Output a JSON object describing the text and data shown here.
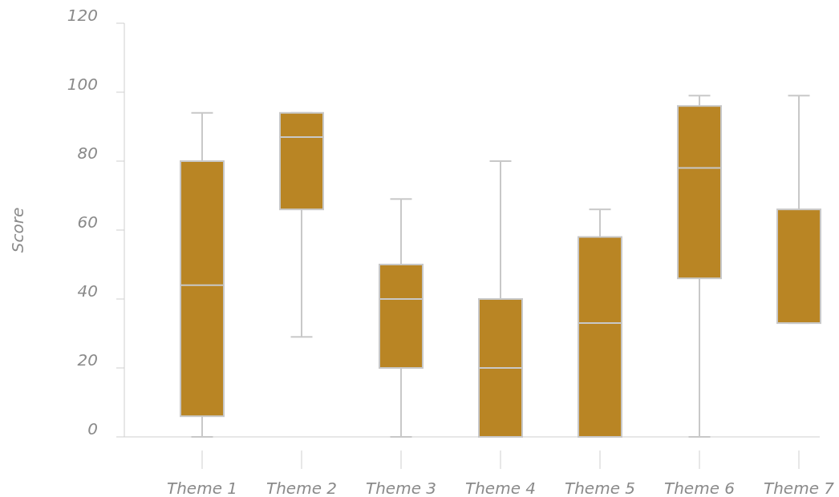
{
  "chart_data": {
    "type": "box",
    "ylabel": "Score",
    "categories": [
      "Theme 1",
      "Theme 2",
      "Theme 3",
      "Theme 4",
      "Theme 5",
      "Theme 6",
      "Theme 7"
    ],
    "boxes": [
      {
        "low": 0,
        "q1": 6,
        "median": 44,
        "q3": 80,
        "high": 94
      },
      {
        "low": 29,
        "q1": 66,
        "median": 87,
        "q3": 94,
        "high": 94
      },
      {
        "low": 0,
        "q1": 20,
        "median": 40,
        "q3": 50,
        "high": 69
      },
      {
        "low": 0,
        "q1": 0,
        "median": 20,
        "q3": 40,
        "high": 80
      },
      {
        "low": 0,
        "q1": 0,
        "median": 33,
        "q3": 58,
        "high": 66
      },
      {
        "low": 0,
        "q1": 46,
        "median": 78,
        "q3": 96,
        "high": 99
      },
      {
        "low": 33,
        "q1": 33,
        "median": 33,
        "q3": 66,
        "high": 99
      }
    ],
    "color": "#b98524",
    "ylim": [
      0,
      120
    ],
    "yticks": [
      0,
      20,
      40,
      60,
      80,
      100,
      120
    ]
  }
}
